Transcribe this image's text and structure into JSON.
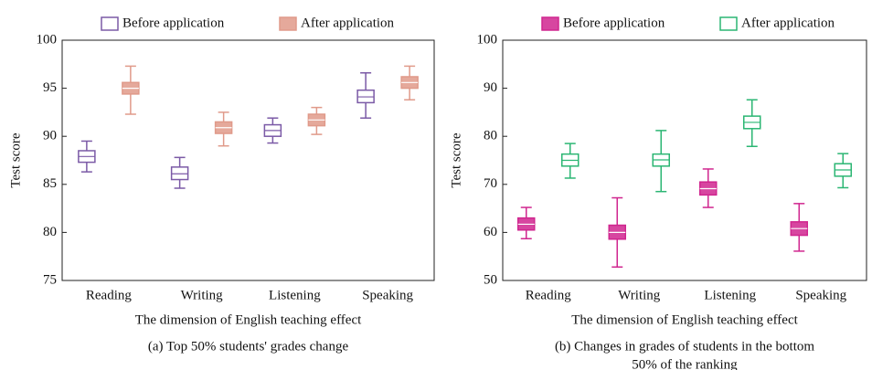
{
  "chart_data": [
    {
      "type": "box",
      "ylabel": "Test score",
      "xlabel": "The dimension of English teaching effect",
      "caption": [
        "(a) Top 50% students' grades change"
      ],
      "categories": [
        "Reading",
        "Writing",
        "Listening",
        "Speaking"
      ],
      "ylim": [
        75,
        100
      ],
      "yticks": [
        75,
        80,
        85,
        90,
        95,
        100
      ],
      "series": [
        {
          "name": "Before application",
          "color": "#7b5aa6",
          "style": "outline",
          "values": [
            [
              86.3,
              87.3,
              87.9,
              88.5,
              89.5
            ],
            [
              84.6,
              85.5,
              86.1,
              86.8,
              87.8
            ],
            [
              89.3,
              90.0,
              90.6,
              91.2,
              91.9
            ],
            [
              91.9,
              93.5,
              94.1,
              94.8,
              96.6
            ]
          ]
        },
        {
          "name": "After application",
          "color": "#e09a8a",
          "style": "filled",
          "values": [
            [
              92.3,
              94.4,
              95.0,
              95.6,
              97.3
            ],
            [
              89.0,
              90.3,
              90.9,
              91.5,
              92.5
            ],
            [
              90.2,
              91.1,
              91.7,
              92.3,
              93.0
            ],
            [
              93.8,
              95.0,
              95.6,
              96.2,
              97.3
            ]
          ]
        }
      ]
    },
    {
      "type": "box",
      "ylabel": "Test score",
      "xlabel": "The dimension of English teaching effect",
      "caption": [
        "(b) Changes in grades of students in the bottom",
        "50% of the ranking"
      ],
      "categories": [
        "Reading",
        "Writing",
        "Listening",
        "Speaking"
      ],
      "ylim": [
        50,
        100
      ],
      "yticks": [
        50,
        60,
        70,
        80,
        90,
        100
      ],
      "series": [
        {
          "name": "Before application",
          "color": "#d0268f",
          "style": "filled",
          "values": [
            [
              58.7,
              60.5,
              61.7,
              63.0,
              65.2
            ],
            [
              52.8,
              58.6,
              60.0,
              61.5,
              67.2
            ],
            [
              65.2,
              67.8,
              69.1,
              70.5,
              73.2
            ],
            [
              56.1,
              59.4,
              60.8,
              62.2,
              66.0
            ]
          ]
        },
        {
          "name": "After application",
          "color": "#2bb673",
          "style": "outline",
          "values": [
            [
              71.3,
              73.8,
              75.0,
              76.3,
              78.5
            ],
            [
              68.5,
              73.8,
              75.1,
              76.3,
              81.2
            ],
            [
              77.9,
              81.6,
              82.9,
              84.2,
              87.6
            ],
            [
              69.3,
              71.7,
              73.0,
              74.3,
              76.4
            ]
          ]
        }
      ]
    }
  ]
}
